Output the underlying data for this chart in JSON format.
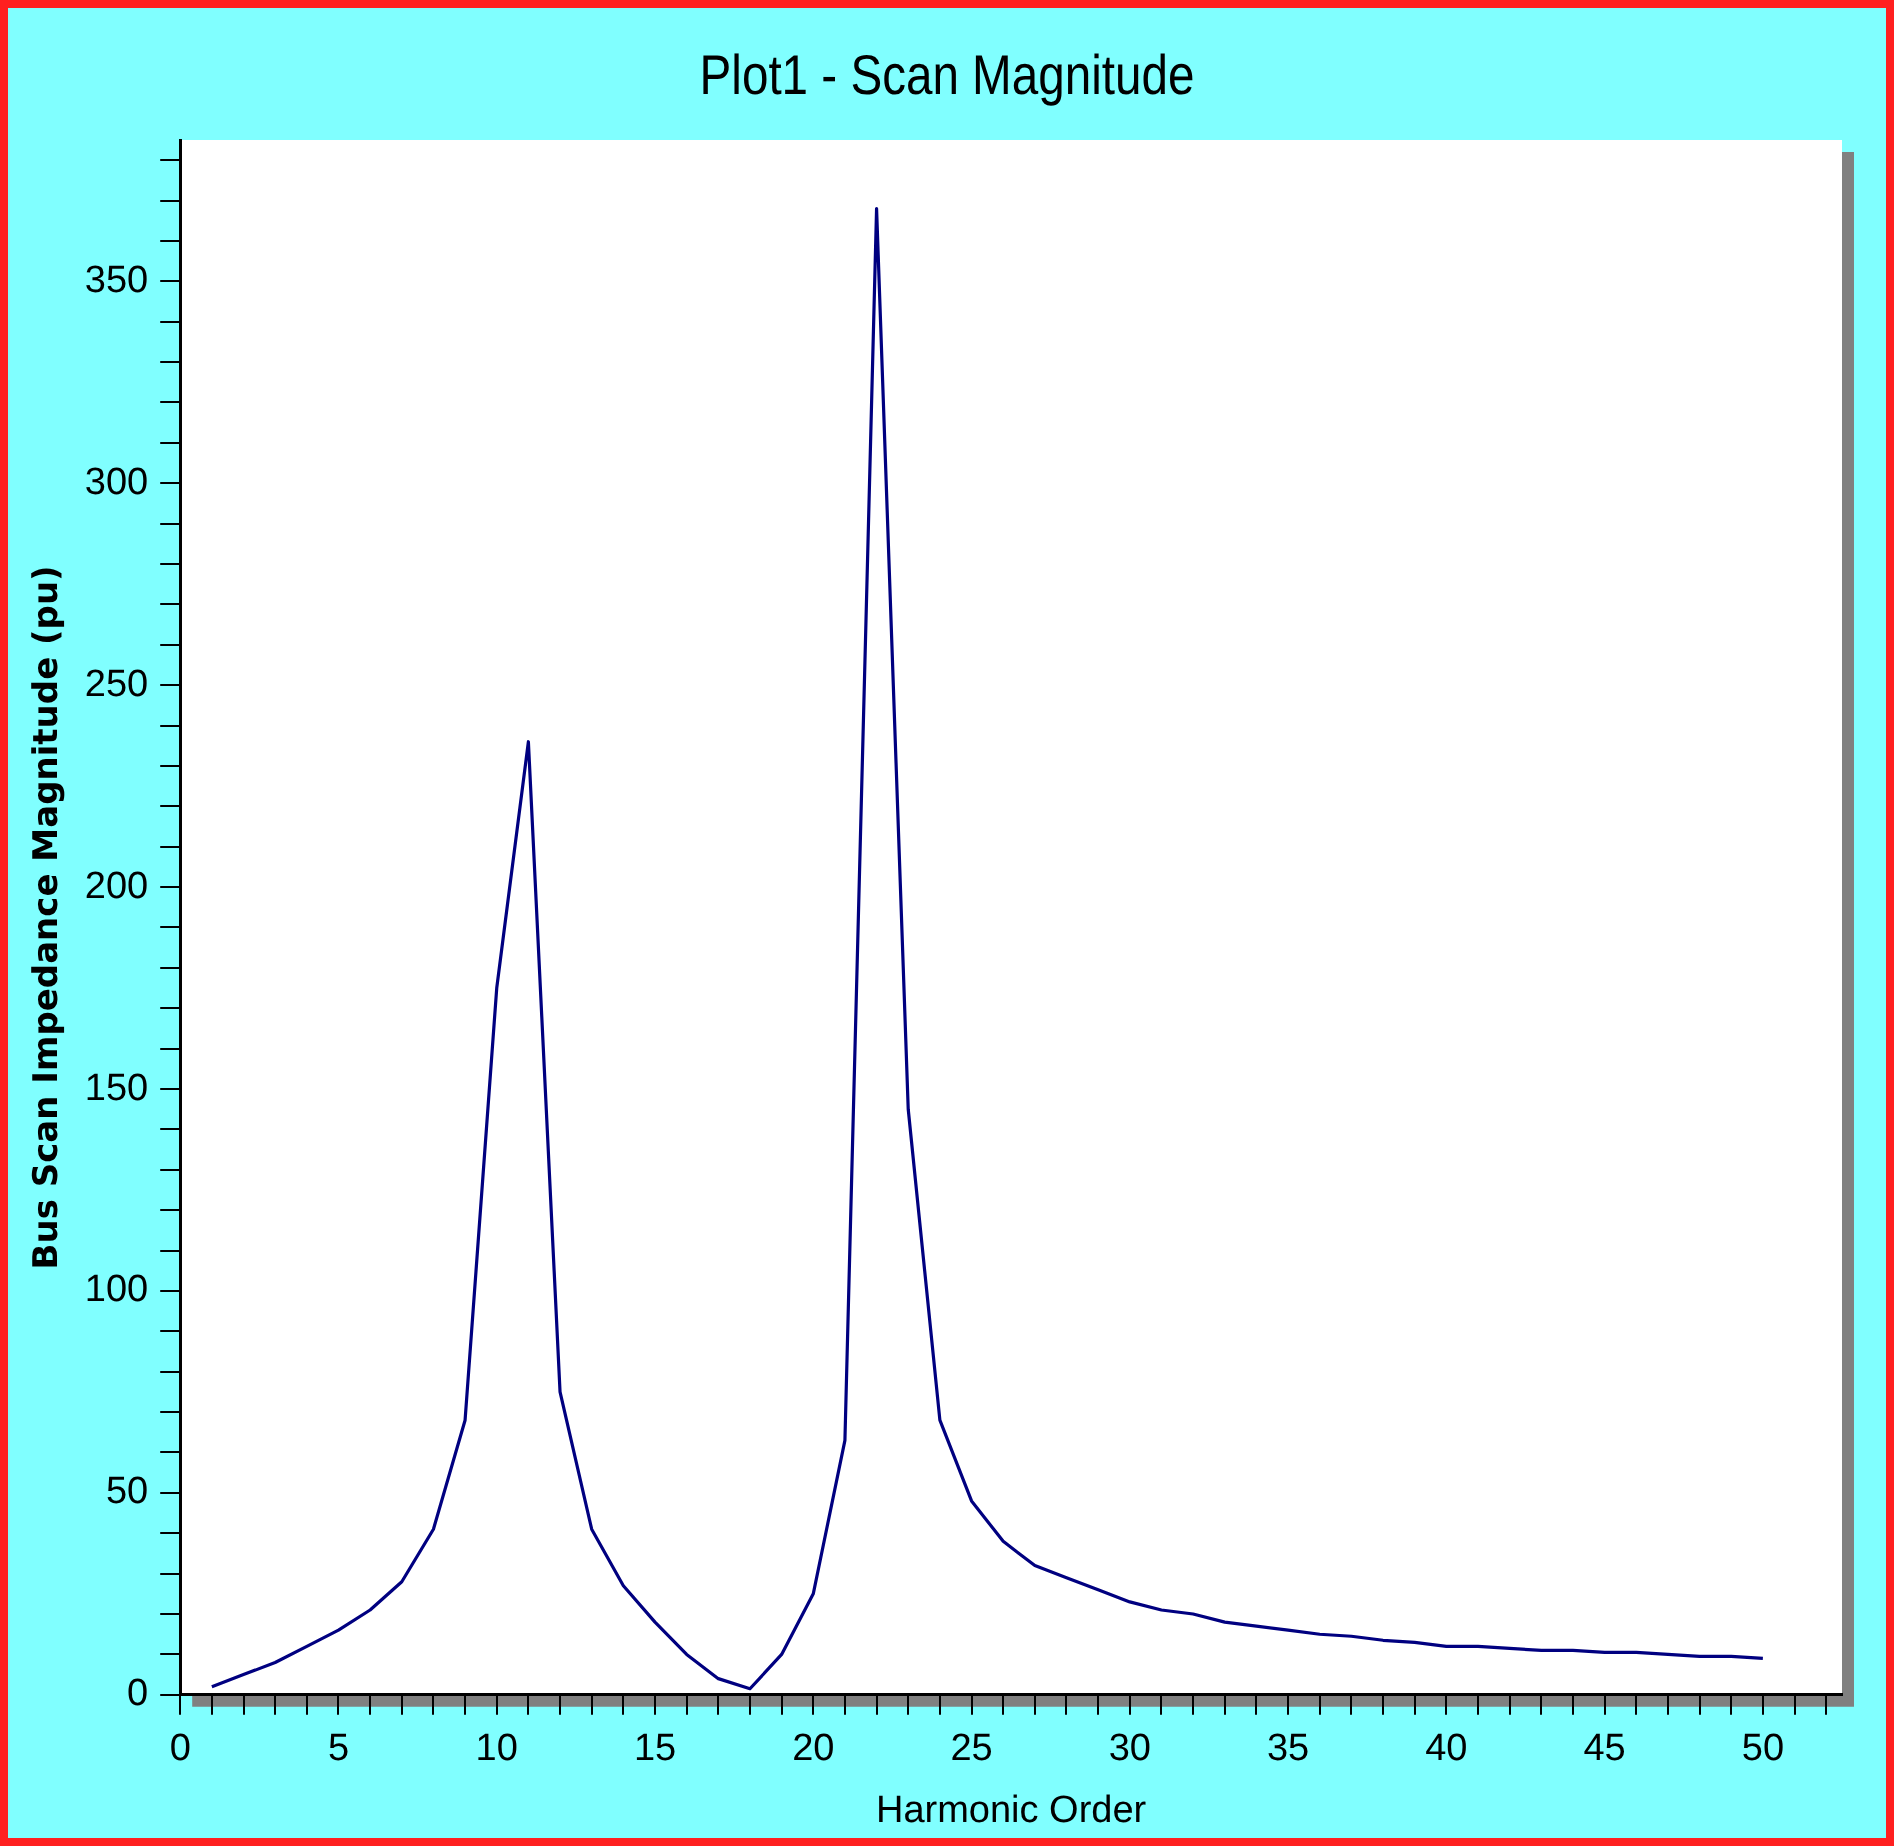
{
  "chart_data": {
    "type": "line",
    "title": "Plot1 - Scan Magnitude",
    "xlabel": "Harmonic Order",
    "ylabel": "Bus Scan Impedance Magnitude (pu)",
    "x": [
      1,
      2,
      3,
      4,
      5,
      6,
      7,
      8,
      9,
      10,
      11,
      12,
      13,
      14,
      15,
      16,
      17,
      18,
      19,
      20,
      21,
      22,
      23,
      24,
      25,
      26,
      27,
      28,
      29,
      30,
      31,
      32,
      33,
      34,
      35,
      36,
      37,
      38,
      39,
      40,
      41,
      42,
      43,
      44,
      45,
      46,
      47,
      48,
      49,
      50
    ],
    "series": [
      {
        "color": "#000080",
        "values": [
          2,
          5,
          8,
          12,
          16,
          21,
          28,
          41,
          68,
          175,
          236,
          75,
          41,
          27,
          18,
          10,
          4,
          1.5,
          10,
          25,
          63,
          368,
          145,
          68,
          48,
          38,
          32,
          29,
          26,
          23,
          21,
          20,
          18,
          17,
          16,
          15,
          14.5,
          13.5,
          13,
          12,
          12,
          11.5,
          11,
          11,
          10.5,
          10.5,
          10,
          9.5,
          9.5,
          9
        ]
      }
    ],
    "xlim": [
      0,
      52.5
    ],
    "ylim": [
      0,
      385
    ],
    "xticks": [
      0,
      {
        "value": 1,
        "label": null
      },
      {
        "value": 2,
        "label": null
      },
      {
        "value": 3,
        "label": null
      },
      {
        "value": 4,
        "label": null
      },
      5,
      {
        "value": 6,
        "label": null
      },
      {
        "value": 7,
        "label": null
      },
      {
        "value": 8,
        "label": null
      },
      {
        "value": 9,
        "label": null
      },
      10,
      {
        "value": 11,
        "label": null
      },
      {
        "value": 12,
        "label": null
      },
      {
        "value": 13,
        "label": null
      },
      {
        "value": 14,
        "label": null
      },
      15,
      {
        "value": 16,
        "label": null
      },
      {
        "value": 17,
        "label": null
      },
      {
        "value": 18,
        "label": null
      },
      {
        "value": 19,
        "label": null
      },
      20,
      {
        "value": 21,
        "label": null
      },
      {
        "value": 22,
        "label": null
      },
      {
        "value": 23,
        "label": null
      },
      {
        "value": 24,
        "label": null
      },
      25,
      {
        "value": 26,
        "label": null
      },
      {
        "value": 27,
        "label": null
      },
      {
        "value": 28,
        "label": null
      },
      {
        "value": 29,
        "label": null
      },
      30,
      {
        "value": 31,
        "label": null
      },
      {
        "value": 32,
        "label": null
      },
      {
        "value": 33,
        "label": null
      },
      {
        "value": 34,
        "label": null
      },
      35,
      {
        "value": 36,
        "label": null
      },
      {
        "value": 37,
        "label": null
      },
      {
        "value": 38,
        "label": null
      },
      {
        "value": 39,
        "label": null
      },
      40,
      {
        "value": 41,
        "label": null
      },
      {
        "value": 42,
        "label": null
      },
      {
        "value": 43,
        "label": null
      },
      {
        "value": 44,
        "label": null
      },
      45,
      {
        "value": 46,
        "label": null
      },
      {
        "value": 47,
        "label": null
      },
      {
        "value": 48,
        "label": null
      },
      {
        "value": 49,
        "label": null
      },
      50,
      {
        "value": 51,
        "label": null
      },
      {
        "value": 52,
        "label": null
      }
    ],
    "yticks": [
      0,
      {
        "value": 10,
        "label": null
      },
      {
        "value": 20,
        "label": null
      },
      {
        "value": 30,
        "label": null
      },
      {
        "value": 40,
        "label": null
      },
      50,
      {
        "value": 60,
        "label": null
      },
      {
        "value": 70,
        "label": null
      },
      {
        "value": 80,
        "label": null
      },
      {
        "value": 90,
        "label": null
      },
      100,
      {
        "value": 110,
        "label": null
      },
      {
        "value": 120,
        "label": null
      },
      {
        "value": 130,
        "label": null
      },
      {
        "value": 140,
        "label": null
      },
      150,
      {
        "value": 160,
        "label": null
      },
      {
        "value": 170,
        "label": null
      },
      {
        "value": 180,
        "label": null
      },
      {
        "value": 190,
        "label": null
      },
      200,
      {
        "value": 210,
        "label": null
      },
      {
        "value": 220,
        "label": null
      },
      {
        "value": 230,
        "label": null
      },
      {
        "value": 240,
        "label": null
      },
      250,
      {
        "value": 260,
        "label": null
      },
      {
        "value": 270,
        "label": null
      },
      {
        "value": 280,
        "label": null
      },
      {
        "value": 290,
        "label": null
      },
      300,
      {
        "value": 310,
        "label": null
      },
      {
        "value": 320,
        "label": null
      },
      {
        "value": 330,
        "label": null
      },
      {
        "value": 340,
        "label": null
      },
      350,
      {
        "value": 360,
        "label": null
      },
      {
        "value": 370,
        "label": null
      },
      {
        "value": 380,
        "label": null
      }
    ],
    "marker": "none",
    "line_style": "solid",
    "legend": false,
    "grid": false
  }
}
